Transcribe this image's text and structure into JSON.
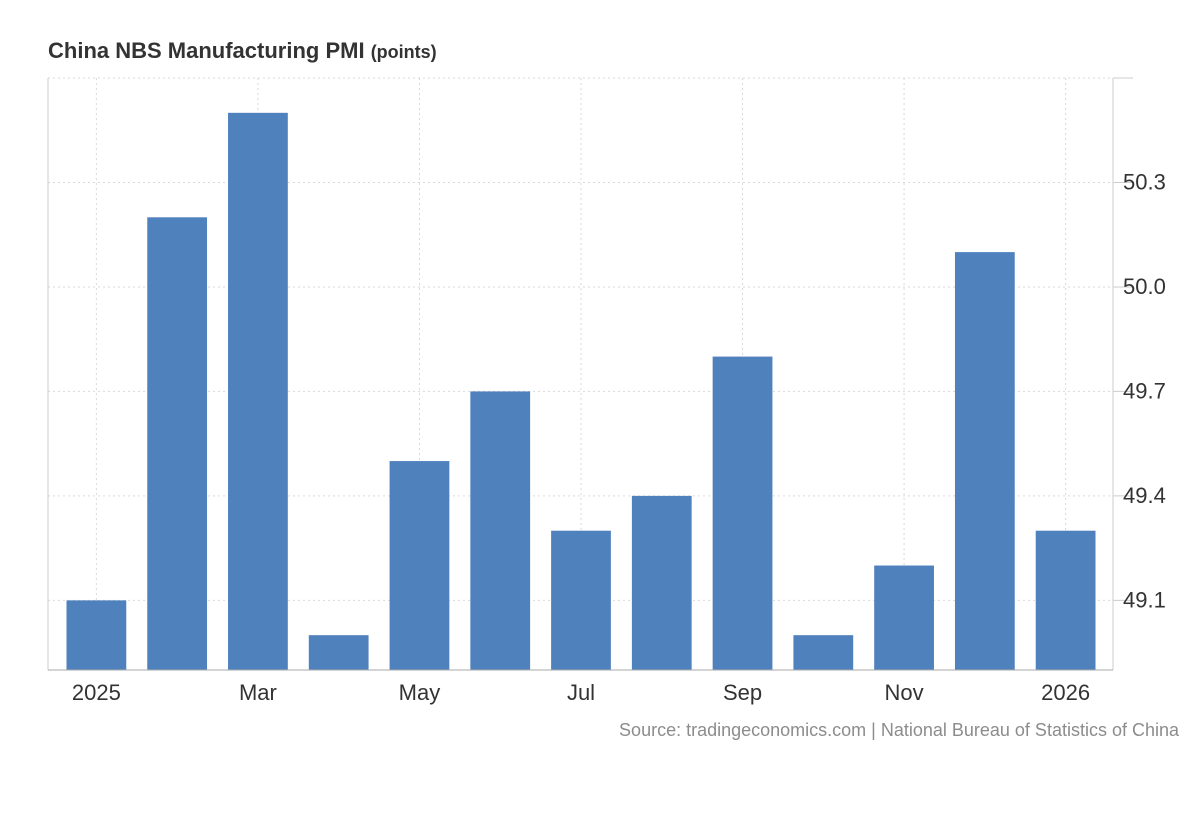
{
  "chart_data": {
    "type": "bar",
    "title": "China NBS Manufacturing PMI",
    "unit": "(points)",
    "months": [
      "2025-01",
      "2025-02",
      "2025-03",
      "2025-04",
      "2025-05",
      "2025-06",
      "2025-07",
      "2025-08",
      "2025-09",
      "2025-10",
      "2025-11",
      "2025-12",
      "2026-01"
    ],
    "values": [
      49.1,
      50.2,
      50.5,
      49.0,
      49.5,
      49.7,
      49.3,
      49.4,
      49.8,
      49.0,
      49.2,
      50.1,
      49.3
    ],
    "x_tick_labels": [
      "2025",
      "Mar",
      "May",
      "Jul",
      "Sep",
      "Nov",
      "2026"
    ],
    "x_tick_indices": [
      0,
      2,
      4,
      6,
      8,
      10,
      12
    ],
    "y_ticks": [
      49.1,
      49.4,
      49.7,
      50.0,
      50.3
    ],
    "y_tick_labels": [
      "49.1",
      "49.4",
      "49.7",
      "50.0",
      "50.3"
    ],
    "ylim": [
      48.9,
      50.6
    ],
    "xlabel": "",
    "ylabel": "",
    "grid": true,
    "y_axis_side": "right",
    "bar_color": "#4f81bd"
  },
  "source": "Source: tradingeconomics.com | National Bureau of Statistics of China"
}
